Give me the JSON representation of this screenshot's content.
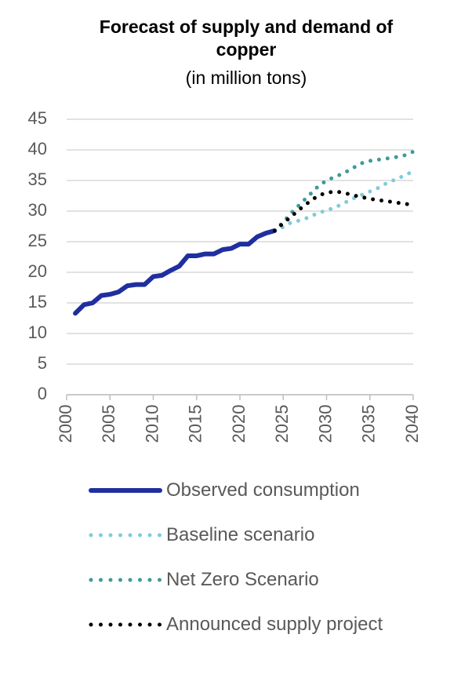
{
  "chart_data": {
    "type": "line",
    "title": "Forecast of supply and demand of copper",
    "subtitle": "(in million tons)",
    "xlim": [
      2000,
      2040
    ],
    "xticks": [
      2000,
      2005,
      2010,
      2015,
      2020,
      2025,
      2030,
      2035,
      2040
    ],
    "ylim": [
      0,
      45
    ],
    "yticks": [
      0,
      5,
      10,
      15,
      20,
      25,
      30,
      35,
      40,
      45
    ],
    "grid": true,
    "legend": "bottom",
    "series": [
      {
        "name": "Observed consumption",
        "color": "#1f2fa0",
        "style": "solid",
        "x": [
          2001,
          2002,
          2003,
          2004,
          2005,
          2006,
          2007,
          2008,
          2009,
          2010,
          2011,
          2012,
          2013,
          2014,
          2015,
          2016,
          2017,
          2018,
          2019,
          2020,
          2021,
          2022,
          2023,
          2024
        ],
        "values": [
          13.3,
          14.7,
          15.0,
          16.2,
          16.4,
          16.8,
          17.8,
          18.0,
          18.0,
          19.3,
          19.5,
          20.3,
          21.0,
          22.7,
          22.7,
          23.0,
          23.0,
          23.7,
          23.9,
          24.6,
          24.6,
          25.8,
          26.4,
          26.8
        ]
      },
      {
        "name": "Baseline scenario",
        "color": "#7ecbdc",
        "style": "dotted",
        "x": [
          2024,
          2025,
          2026,
          2027,
          2028,
          2029,
          2030,
          2031,
          2032,
          2033,
          2034,
          2035,
          2036,
          2037,
          2038,
          2039,
          2040
        ],
        "values": [
          26.8,
          27.4,
          28.2,
          28.5,
          29.0,
          29.7,
          30.1,
          30.6,
          31.3,
          32.0,
          32.6,
          33.2,
          33.8,
          34.6,
          35.2,
          35.8,
          36.5
        ]
      },
      {
        "name": "Net Zero Scenario",
        "color": "#3f9a98",
        "style": "dotted",
        "x": [
          2024,
          2025,
          2026,
          2027,
          2028,
          2029,
          2030,
          2031,
          2032,
          2033,
          2034,
          2035,
          2036,
          2037,
          2038,
          2039,
          2040
        ],
        "values": [
          26.8,
          28.2,
          29.8,
          31.2,
          32.6,
          34.0,
          35.0,
          35.6,
          36.2,
          37.0,
          37.8,
          38.2,
          38.4,
          38.6,
          38.8,
          39.1,
          39.7
        ]
      },
      {
        "name": "Announced supply project",
        "color": "#000000",
        "style": "dotted",
        "x": [
          2024,
          2025,
          2026,
          2027,
          2028,
          2029,
          2030,
          2031,
          2032,
          2033,
          2034,
          2035,
          2036,
          2037,
          2038,
          2039,
          2040
        ],
        "values": [
          26.8,
          28.0,
          29.2,
          30.4,
          31.5,
          32.5,
          33.0,
          33.2,
          33.0,
          32.6,
          32.3,
          32.0,
          31.8,
          31.6,
          31.4,
          31.2,
          31.0
        ]
      }
    ]
  }
}
